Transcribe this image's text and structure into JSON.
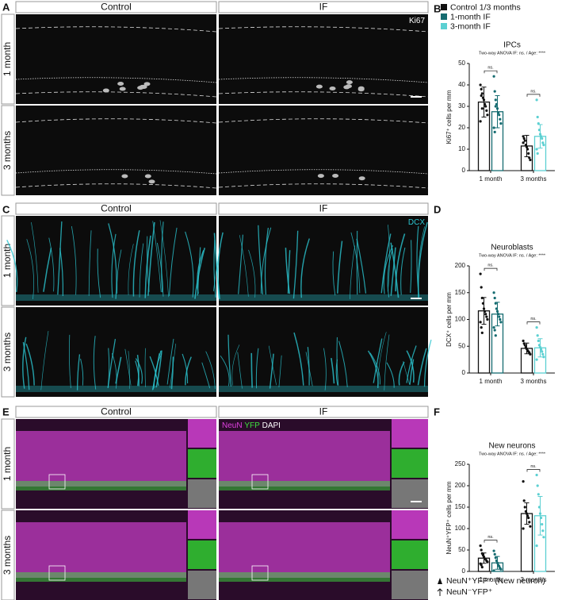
{
  "figure": {
    "labels": [
      "A",
      "B",
      "C",
      "D",
      "E",
      "F"
    ],
    "image_panels": [
      {
        "columns": [
          "Control",
          "IF"
        ],
        "rows": [
          "1 month",
          "3 months"
        ],
        "stain": [
          "Ki67"
        ],
        "stain_colors": [
          "#ffffff"
        ]
      },
      {
        "columns": [
          "Control",
          "IF"
        ],
        "rows": [
          "1 month",
          "3 months"
        ],
        "stain": [
          "DCX"
        ],
        "stain_colors": [
          "#2bc4cf"
        ]
      },
      {
        "columns": [
          "Control",
          "IF"
        ],
        "rows": [
          "1 month",
          "3 months"
        ],
        "stain": [
          "NeuN",
          "YFP",
          "DAPI"
        ],
        "stain_colors": [
          "#e040e0",
          "#3ee03e",
          "#ffffff"
        ]
      }
    ],
    "marker_legend": [
      "NeuN⁺YFP⁺ (New neuron)",
      "NeuN⁻YFP⁺"
    ]
  },
  "chart_data": [
    {
      "type": "bar",
      "title": "IPCs",
      "subtitle": "Two-way ANOVA IF: ns. / Age: ****",
      "y_label": "Ki67⁺ cells per mm",
      "categories": [
        "1 month",
        "3 months"
      ],
      "legend": true,
      "series": [
        {
          "name": "Control 1/3 months",
          "color": "#111111",
          "values": [
            32,
            11.5
          ],
          "errors": [
            7,
            5
          ],
          "points": [
            [
              40,
              38,
              36,
              34,
              33,
              31,
              30,
              28,
              26,
              23,
              35,
              29
            ],
            [
              16,
              15,
              14,
              12,
              11,
              10,
              8,
              6,
              5,
              13
            ]
          ]
        },
        {
          "name": "1-month IF",
          "color": "#156b70",
          "values": [
            27.5,
            null
          ],
          "errors": [
            7.5,
            null
          ],
          "points": [
            [
              44,
              37,
              33,
              31,
              29,
              27,
              26,
              24,
              22,
              20,
              18,
              30
            ],
            null
          ]
        },
        {
          "name": "3-month IF",
          "color": "#5cd0d2",
          "values": [
            null,
            16
          ],
          "errors": [
            null,
            5.5
          ],
          "points": [
            null,
            [
              33,
              25,
              22,
              19,
              17,
              16,
              15,
              13,
              12,
              10,
              8
            ]
          ]
        }
      ],
      "annotations": [
        "ns.",
        "ns."
      ],
      "ylim": [
        0,
        50
      ],
      "yticks": [
        0,
        10,
        20,
        30,
        40,
        50
      ]
    },
    {
      "type": "bar",
      "title": "Neuroblasts",
      "subtitle": "Two-way ANOVA IF: ns. / Age: ****",
      "y_label": "DCX⁺ cells per mm",
      "categories": [
        "1 month",
        "3 months"
      ],
      "legend": false,
      "series": [
        {
          "name": "Control 1/3 months",
          "color": "#111111",
          "values": [
            116,
            46
          ],
          "errors": [
            25,
            10
          ],
          "points": [
            [
              185,
              160,
              140,
              130,
              120,
              115,
              110,
              105,
              100,
              95,
              85,
              75
            ],
            [
              60,
              55,
              52,
              48,
              45,
              42,
              40,
              38,
              35
            ]
          ]
        },
        {
          "name": "1-month IF",
          "color": "#156b70",
          "values": [
            110,
            null
          ],
          "errors": [
            22,
            null
          ],
          "points": [
            [
              150,
              140,
              130,
              120,
              115,
              110,
              105,
              100,
              95,
              85,
              80,
              70
            ],
            null
          ]
        },
        {
          "name": "3-month IF",
          "color": "#5cd0d2",
          "values": [
            null,
            47
          ],
          "errors": [
            null,
            17
          ],
          "points": [
            null,
            [
              85,
              70,
              60,
              52,
              48,
              44,
              40,
              35,
              30,
              25
            ]
          ]
        }
      ],
      "annotations": [
        "ns.",
        "ns."
      ],
      "ylim": [
        0,
        200
      ],
      "yticks": [
        0,
        50,
        100,
        150,
        200
      ]
    },
    {
      "type": "bar",
      "title": "New neurons",
      "subtitle": "Two-way ANOVA IF: ns. / Age: ****",
      "y_label": "NeuN⁺YFP⁺ cells per mm",
      "categories": [
        "1 month",
        "3 months"
      ],
      "legend": false,
      "series": [
        {
          "name": "Control 1/3 months",
          "color": "#111111",
          "values": [
            31,
            135
          ],
          "errors": [
            12,
            25
          ],
          "points": [
            [
              60,
              50,
              42,
              38,
              34,
              30,
              28,
              25,
              22,
              18,
              15,
              10
            ],
            [
              210,
              165,
              150,
              140,
              135,
              130,
              125,
              115,
              105,
              100
            ]
          ]
        },
        {
          "name": "1-month IF",
          "color": "#156b70",
          "values": [
            20,
            null
          ],
          "errors": [
            15,
            null
          ],
          "points": [
            [
              48,
              40,
              32,
              25,
              20,
              15,
              12,
              8,
              5,
              2
            ],
            null
          ]
        },
        {
          "name": "3-month IF",
          "color": "#5cd0d2",
          "values": [
            null,
            130
          ],
          "errors": [
            null,
            45
          ],
          "points": [
            null,
            [
              225,
              200,
              180,
              150,
              135,
              125,
              110,
              95,
              80,
              60
            ]
          ]
        }
      ],
      "annotations": [
        "ns.",
        "ns."
      ],
      "ylim": [
        0,
        250
      ],
      "yticks": [
        0,
        50,
        100,
        150,
        200,
        250
      ]
    }
  ]
}
